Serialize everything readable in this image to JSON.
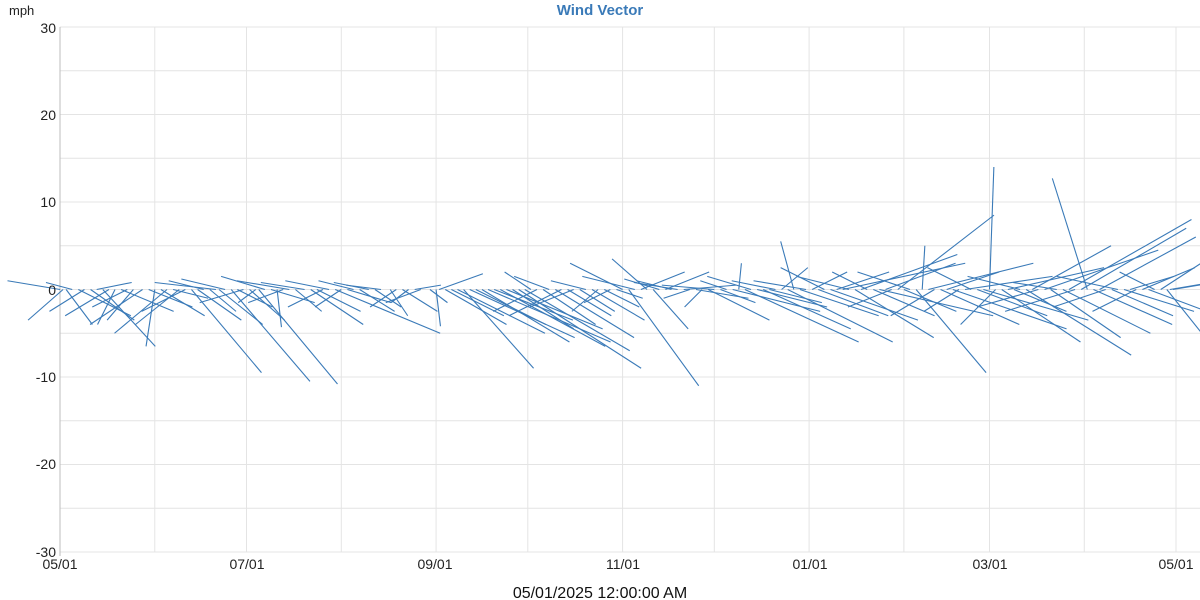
{
  "chart_data": {
    "type": "wind-vector",
    "title": "Wind Vector",
    "ylabel": "mph",
    "ylim": [
      -30,
      30
    ],
    "yticks": [
      "30",
      "20",
      "10",
      "0",
      "-10",
      "-20",
      "-30"
    ],
    "xlim": [
      "2025-05-01",
      "2026-05-01"
    ],
    "xtick_labels": [
      {
        "date": "2025-05-01",
        "label": "05/01"
      },
      {
        "date": "2025-07-01",
        "label": "07/01"
      },
      {
        "date": "2025-09-01",
        "label": "09/01"
      },
      {
        "date": "2025-11-01",
        "label": "11/01"
      },
      {
        "date": "2026-01-01",
        "label": "01/01"
      },
      {
        "date": "2026-03-01",
        "label": "03/01"
      },
      {
        "date": "2026-05-01",
        "label": "05/01"
      }
    ],
    "grid": true,
    "cursor_label": "05/01/2025 12:00:00 AM",
    "series_color": "#3a7ab8",
    "title_color": "#3a7ab8",
    "vectors": [
      {
        "date": "2025-05-01",
        "u": -6,
        "v": 1.0
      },
      {
        "date": "2025-05-02",
        "u": -4,
        "v": -3.5
      },
      {
        "date": "2025-05-03",
        "u": 3,
        "v": -4.0
      },
      {
        "date": "2025-05-05",
        "u": -3,
        "v": 0.8
      },
      {
        "date": "2025-05-07",
        "u": 6,
        "v": -3.0
      },
      {
        "date": "2025-05-09",
        "u": -4,
        "v": -2.5
      },
      {
        "date": "2025-05-11",
        "u": 5,
        "v": -3.5
      },
      {
        "date": "2025-05-13",
        "u": 4,
        "v": 0.8
      },
      {
        "date": "2025-05-15",
        "u": 6,
        "v": -6.5
      },
      {
        "date": "2025-05-17",
        "u": -5,
        "v": -3.0
      },
      {
        "date": "2025-05-19",
        "u": -2,
        "v": -4.0
      },
      {
        "date": "2025-05-21",
        "u": 6,
        "v": -2.5
      },
      {
        "date": "2025-05-23",
        "u": -4,
        "v": -2.0
      },
      {
        "date": "2025-05-25",
        "u": -3,
        "v": -3.5
      },
      {
        "date": "2025-05-28",
        "u": -6,
        "v": -4.0
      },
      {
        "date": "2025-05-30",
        "u": 5,
        "v": -2.0
      },
      {
        "date": "2025-06-01",
        "u": -1,
        "v": -6.5
      },
      {
        "date": "2025-06-03",
        "u": 5,
        "v": -3.0
      },
      {
        "date": "2025-06-05",
        "u": -6,
        "v": -5.0
      },
      {
        "date": "2025-06-07",
        "u": 4,
        "v": -1.0
      },
      {
        "date": "2025-06-09",
        "u": -5,
        "v": -4.0
      },
      {
        "date": "2025-06-11",
        "u": -5,
        "v": -2.5
      },
      {
        "date": "2025-06-13",
        "u": 8,
        "v": -9.5
      },
      {
        "date": "2025-06-15",
        "u": 5,
        "v": -3.5
      },
      {
        "date": "2025-06-17",
        "u": -4,
        "v": 1.0
      },
      {
        "date": "2025-06-19",
        "u": 3,
        "v": -2.5
      },
      {
        "date": "2025-06-21",
        "u": -7,
        "v": 0.8
      },
      {
        "date": "2025-06-22",
        "u": 5,
        "v": -4.0
      },
      {
        "date": "2025-06-24",
        "u": -5,
        "v": 1.2
      },
      {
        "date": "2025-06-26",
        "u": 9,
        "v": -10.5
      },
      {
        "date": "2025-06-28",
        "u": 4,
        "v": -2.0
      },
      {
        "date": "2025-06-30",
        "u": -5,
        "v": -1.5
      },
      {
        "date": "2025-07-02",
        "u": 4,
        "v": -3.5
      },
      {
        "date": "2025-07-04",
        "u": -2,
        "v": -1.5
      },
      {
        "date": "2025-07-05",
        "u": 9,
        "v": -10.8
      },
      {
        "date": "2025-07-07",
        "u": -5,
        "v": 1.5
      },
      {
        "date": "2025-07-09",
        "u": 5,
        "v": -1.5
      },
      {
        "date": "2025-07-11",
        "u": 0.5,
        "v": -4.3
      },
      {
        "date": "2025-07-13",
        "u": -4,
        "v": -1.5
      },
      {
        "date": "2025-07-15",
        "u": -6,
        "v": 1.0
      },
      {
        "date": "2025-07-17",
        "u": 3,
        "v": -2.5
      },
      {
        "date": "2025-07-20",
        "u": -5,
        "v": 0.8
      },
      {
        "date": "2025-07-22",
        "u": 6,
        "v": -4.0
      },
      {
        "date": "2025-07-24",
        "u": 5,
        "v": -2.5
      },
      {
        "date": "2025-07-26",
        "u": -4,
        "v": -2.0
      },
      {
        "date": "2025-07-28",
        "u": -5,
        "v": 1.0
      },
      {
        "date": "2025-07-30",
        "u": 12,
        "v": -5.0
      },
      {
        "date": "2025-08-01",
        "u": -3,
        "v": -2.0
      },
      {
        "date": "2025-08-03",
        "u": 5,
        "v": -1.5
      },
      {
        "date": "2025-08-05",
        "u": -4,
        "v": 1.0
      },
      {
        "date": "2025-08-07",
        "u": 4,
        "v": -2.5
      },
      {
        "date": "2025-08-10",
        "u": -4,
        "v": 0.8
      },
      {
        "date": "2025-08-12",
        "u": 3,
        "v": -2.0
      },
      {
        "date": "2025-08-14",
        "u": -4,
        "v": 0.5
      },
      {
        "date": "2025-08-17",
        "u": 2,
        "v": -3.0
      },
      {
        "date": "2025-08-19",
        "u": -3,
        "v": -2.0
      },
      {
        "date": "2025-08-21",
        "u": 4,
        "v": -2.5
      },
      {
        "date": "2025-08-23",
        "u": -2,
        "v": -1.5
      },
      {
        "date": "2025-08-25",
        "u": 3,
        "v": 0.5
      },
      {
        "date": "2025-08-27",
        "u": -4,
        "v": -1.5
      },
      {
        "date": "2025-08-30",
        "u": 2,
        "v": -1.5
      },
      {
        "date": "2025-09-01",
        "u": 0.5,
        "v": -4.2
      },
      {
        "date": "2025-09-02",
        "u": 5,
        "v": 1.8
      },
      {
        "date": "2025-09-04",
        "u": 7,
        "v": -4.0
      },
      {
        "date": "2025-09-06",
        "u": 6,
        "v": -3.0
      },
      {
        "date": "2025-09-08",
        "u": 10,
        "v": -5.0
      },
      {
        "date": "2025-09-10",
        "u": 8,
        "v": -9.0
      },
      {
        "date": "2025-09-12",
        "u": 12,
        "v": -5.5
      },
      {
        "date": "2025-09-14",
        "u": 8,
        "v": -4.0
      },
      {
        "date": "2025-09-16",
        "u": 10,
        "v": -6.0
      },
      {
        "date": "2025-09-18",
        "u": 14,
        "v": -6.0
      },
      {
        "date": "2025-09-20",
        "u": 9,
        "v": -3.5
      },
      {
        "date": "2025-09-22",
        "u": 12,
        "v": -6.5
      },
      {
        "date": "2025-09-24",
        "u": 11,
        "v": -4.5
      },
      {
        "date": "2025-09-26",
        "u": 7,
        "v": -4.5
      },
      {
        "date": "2025-09-28",
        "u": 14,
        "v": -9.0
      },
      {
        "date": "2025-09-30",
        "u": 12,
        "v": -7.0
      },
      {
        "date": "2025-10-02",
        "u": -3,
        "v": 2.0
      },
      {
        "date": "2025-10-04",
        "u": -5,
        "v": -2.5
      },
      {
        "date": "2025-10-06",
        "u": 6,
        "v": -4.0
      },
      {
        "date": "2025-10-08",
        "u": -4,
        "v": 1.5
      },
      {
        "date": "2025-10-10",
        "u": 9,
        "v": -5.5
      },
      {
        "date": "2025-10-12",
        "u": -6,
        "v": -3.0
      },
      {
        "date": "2025-10-14",
        "u": 5,
        "v": -3.0
      },
      {
        "date": "2025-10-16",
        "u": -5,
        "v": -2.0
      },
      {
        "date": "2025-10-18",
        "u": 4,
        "v": -2.5
      },
      {
        "date": "2025-10-20",
        "u": -4,
        "v": 1.0
      },
      {
        "date": "2025-10-22",
        "u": 6,
        "v": -3.5
      },
      {
        "date": "2025-10-24",
        "u": -3,
        "v": -2.5
      },
      {
        "date": "2025-10-26",
        "u": 4,
        "v": -2.0
      },
      {
        "date": "2025-10-28",
        "u": -3,
        "v": -1.5
      },
      {
        "date": "2025-10-30",
        "u": 3,
        "v": -1.0
      },
      {
        "date": "2025-11-01",
        "u": -6,
        "v": 3.0
      },
      {
        "date": "2025-11-03",
        "u": 8,
        "v": -11.0
      },
      {
        "date": "2025-11-05",
        "u": -6,
        "v": 1.5
      },
      {
        "date": "2025-11-07",
        "u": 5,
        "v": 2.0
      },
      {
        "date": "2025-11-09",
        "u": -4,
        "v": 3.5
      },
      {
        "date": "2025-11-11",
        "u": 4,
        "v": -4.5
      },
      {
        "date": "2025-11-13",
        "u": -4,
        "v": 1.2
      },
      {
        "date": "2025-11-15",
        "u": 5,
        "v": 2.0
      },
      {
        "date": "2025-11-17",
        "u": -4,
        "v": 1.0
      },
      {
        "date": "2025-11-19",
        "u": -5,
        "v": 0.8
      },
      {
        "date": "2025-11-21",
        "u": 6,
        "v": 0.5
      },
      {
        "date": "2025-11-23",
        "u": -3,
        "v": -1.0
      },
      {
        "date": "2025-11-25",
        "u": 6,
        "v": -1.0
      },
      {
        "date": "2025-11-27",
        "u": -2,
        "v": -2.0
      },
      {
        "date": "2025-11-29",
        "u": 7,
        "v": -3.5
      },
      {
        "date": "2025-12-01",
        "u": -6,
        "v": 0.5
      },
      {
        "date": "2025-12-03",
        "u": 4,
        "v": -1.5
      },
      {
        "date": "2025-12-05",
        "u": -3,
        "v": 1.0
      },
      {
        "date": "2025-12-07",
        "u": 10,
        "v": -2.5
      },
      {
        "date": "2025-12-09",
        "u": 0.3,
        "v": 3.0
      },
      {
        "date": "2025-12-11",
        "u": 13,
        "v": -6.0
      },
      {
        "date": "2025-12-13",
        "u": -5,
        "v": 1.5
      },
      {
        "date": "2025-12-15",
        "u": 8,
        "v": -2.0
      },
      {
        "date": "2025-12-17",
        "u": 10,
        "v": -4.5
      },
      {
        "date": "2025-12-19",
        "u": 6,
        "v": -1.5
      },
      {
        "date": "2025-12-21",
        "u": -5,
        "v": 1.0
      },
      {
        "date": "2025-12-23",
        "u": 3,
        "v": 2.5
      },
      {
        "date": "2025-12-25",
        "u": 12,
        "v": -6.0
      },
      {
        "date": "2025-12-27",
        "u": -1.5,
        "v": 5.5
      },
      {
        "date": "2025-12-29",
        "u": 9,
        "v": -3.0
      },
      {
        "date": "2025-12-31",
        "u": -6,
        "v": 1.0
      },
      {
        "date": "2026-01-02",
        "u": 4,
        "v": 2.0
      },
      {
        "date": "2026-01-04",
        "u": 8,
        "v": -3.0
      },
      {
        "date": "2026-01-06",
        "u": -5,
        "v": 2.5
      },
      {
        "date": "2026-01-08",
        "u": 10,
        "v": -3.5
      },
      {
        "date": "2026-01-10",
        "u": 6,
        "v": 2.0
      },
      {
        "date": "2026-01-12",
        "u": 14,
        "v": 3.0
      },
      {
        "date": "2026-01-14",
        "u": -6,
        "v": 1.5
      },
      {
        "date": "2026-01-16",
        "u": 9,
        "v": -5.5
      },
      {
        "date": "2026-01-18",
        "u": 11,
        "v": 4.0
      },
      {
        "date": "2026-01-20",
        "u": -4,
        "v": 2.0
      },
      {
        "date": "2026-01-22",
        "u": 7,
        "v": -3.0
      },
      {
        "date": "2026-01-24",
        "u": 13,
        "v": -3.0
      },
      {
        "date": "2026-01-26",
        "u": 8,
        "v": 3.0
      },
      {
        "date": "2026-01-28",
        "u": -5,
        "v": -2.0
      },
      {
        "date": "2026-01-30",
        "u": 11,
        "v": 8.5
      },
      {
        "date": "2026-02-01",
        "u": 6,
        "v": -2.5
      },
      {
        "date": "2026-02-03",
        "u": -6,
        "v": 2.0
      },
      {
        "date": "2026-02-05",
        "u": 8,
        "v": -9.5
      },
      {
        "date": "2026-02-07",
        "u": 0.3,
        "v": 5.0
      },
      {
        "date": "2026-02-09",
        "u": 12,
        "v": 3.0
      },
      {
        "date": "2026-02-11",
        "u": -5,
        "v": -3.0
      },
      {
        "date": "2026-02-13",
        "u": 9,
        "v": -4.0
      },
      {
        "date": "2026-02-15",
        "u": 6,
        "v": 2.0
      },
      {
        "date": "2026-02-17",
        "u": 13,
        "v": -4.5
      },
      {
        "date": "2026-02-19",
        "u": -4,
        "v": -2.5
      },
      {
        "date": "2026-02-21",
        "u": 10,
        "v": 1.5
      },
      {
        "date": "2026-02-23",
        "u": -5,
        "v": 2.5
      },
      {
        "date": "2026-02-25",
        "u": 8,
        "v": -3.0
      },
      {
        "date": "2026-02-27",
        "u": 12,
        "v": -3.5
      },
      {
        "date": "2026-03-01",
        "u": 0.5,
        "v": 14.0
      },
      {
        "date": "2026-03-03",
        "u": -4,
        "v": -4.0
      },
      {
        "date": "2026-03-05",
        "u": 9,
        "v": -6.0
      },
      {
        "date": "2026-03-07",
        "u": 11,
        "v": 2.5
      },
      {
        "date": "2026-03-09",
        "u": 6,
        "v": -2.5
      },
      {
        "date": "2026-03-11",
        "u": -6,
        "v": 1.5
      },
      {
        "date": "2026-03-13",
        "u": 12,
        "v": -7.5
      },
      {
        "date": "2026-03-15",
        "u": 9,
        "v": 5.0
      },
      {
        "date": "2026-03-17",
        "u": -7,
        "v": -2.0
      },
      {
        "date": "2026-03-19",
        "u": 13,
        "v": 4.5
      },
      {
        "date": "2026-03-21",
        "u": 8,
        "v": -5.5
      },
      {
        "date": "2026-03-23",
        "u": -5,
        "v": 0.8
      },
      {
        "date": "2026-03-25",
        "u": 10,
        "v": -5.0
      },
      {
        "date": "2026-03-27",
        "u": 14,
        "v": 8.0
      },
      {
        "date": "2026-03-29",
        "u": -8,
        "v": -2.5
      },
      {
        "date": "2026-03-31",
        "u": 12,
        "v": 7.0
      },
      {
        "date": "2026-04-02",
        "u": -4,
        "v": 12.7
      },
      {
        "date": "2026-04-04",
        "u": 9,
        "v": -4.0
      },
      {
        "date": "2026-04-06",
        "u": 11,
        "v": 6.0
      },
      {
        "date": "2026-04-08",
        "u": -6,
        "v": -2.0
      },
      {
        "date": "2026-04-10",
        "u": 7,
        "v": -3.0
      },
      {
        "date": "2026-04-12",
        "u": -7,
        "v": 1.5
      },
      {
        "date": "2026-04-14",
        "u": 8,
        "v": -2.5
      },
      {
        "date": "2026-04-16",
        "u": 5,
        "v": 1.5
      },
      {
        "date": "2026-04-18",
        "u": -5,
        "v": -2.5
      },
      {
        "date": "2026-04-20",
        "u": 6,
        "v": 2.5
      },
      {
        "date": "2026-04-22",
        "u": 8,
        "v": -3.0
      },
      {
        "date": "2026-04-24",
        "u": -4,
        "v": 2.0
      },
      {
        "date": "2026-04-26",
        "u": 10,
        "v": 6.5
      },
      {
        "date": "2026-04-28",
        "u": 6,
        "v": -7.5
      },
      {
        "date": "2026-04-29",
        "u": 12,
        "v": 2.0
      },
      {
        "date": "2026-04-30",
        "u": 9,
        "v": 1.5
      }
    ]
  }
}
